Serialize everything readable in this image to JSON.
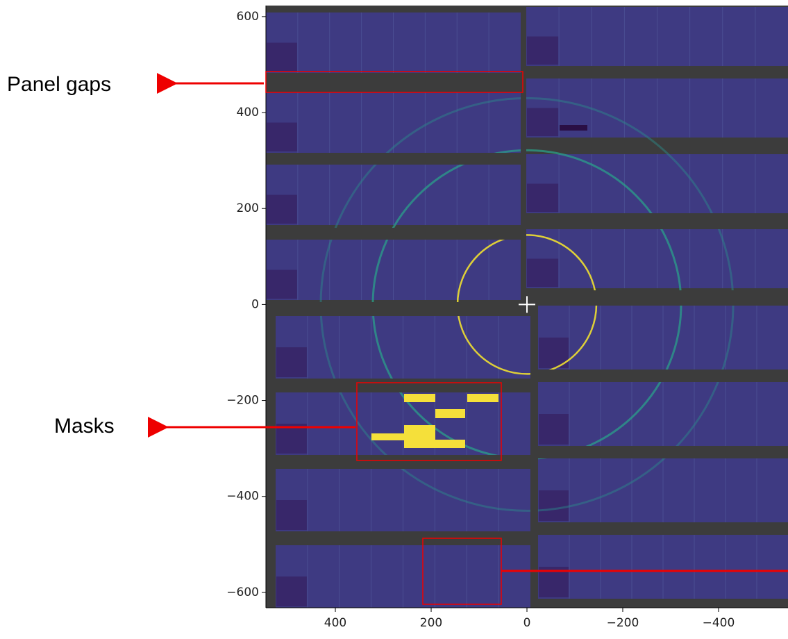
{
  "chart_data": {
    "type": "image",
    "xlim": [
      545,
      -545
    ],
    "ylim": [
      -632,
      623
    ],
    "xticks": [
      400,
      200,
      0,
      {
        "value": -200,
        "label": "−200"
      },
      {
        "value": -400,
        "label": "−400"
      }
    ],
    "yticks": [
      600,
      400,
      200,
      0,
      {
        "value": -200,
        "label": "−200"
      },
      {
        "value": -400,
        "label": "−400"
      },
      {
        "value": -600,
        "label": "−600"
      }
    ],
    "annotations": [
      "Panel gaps",
      "Masks"
    ]
  }
}
